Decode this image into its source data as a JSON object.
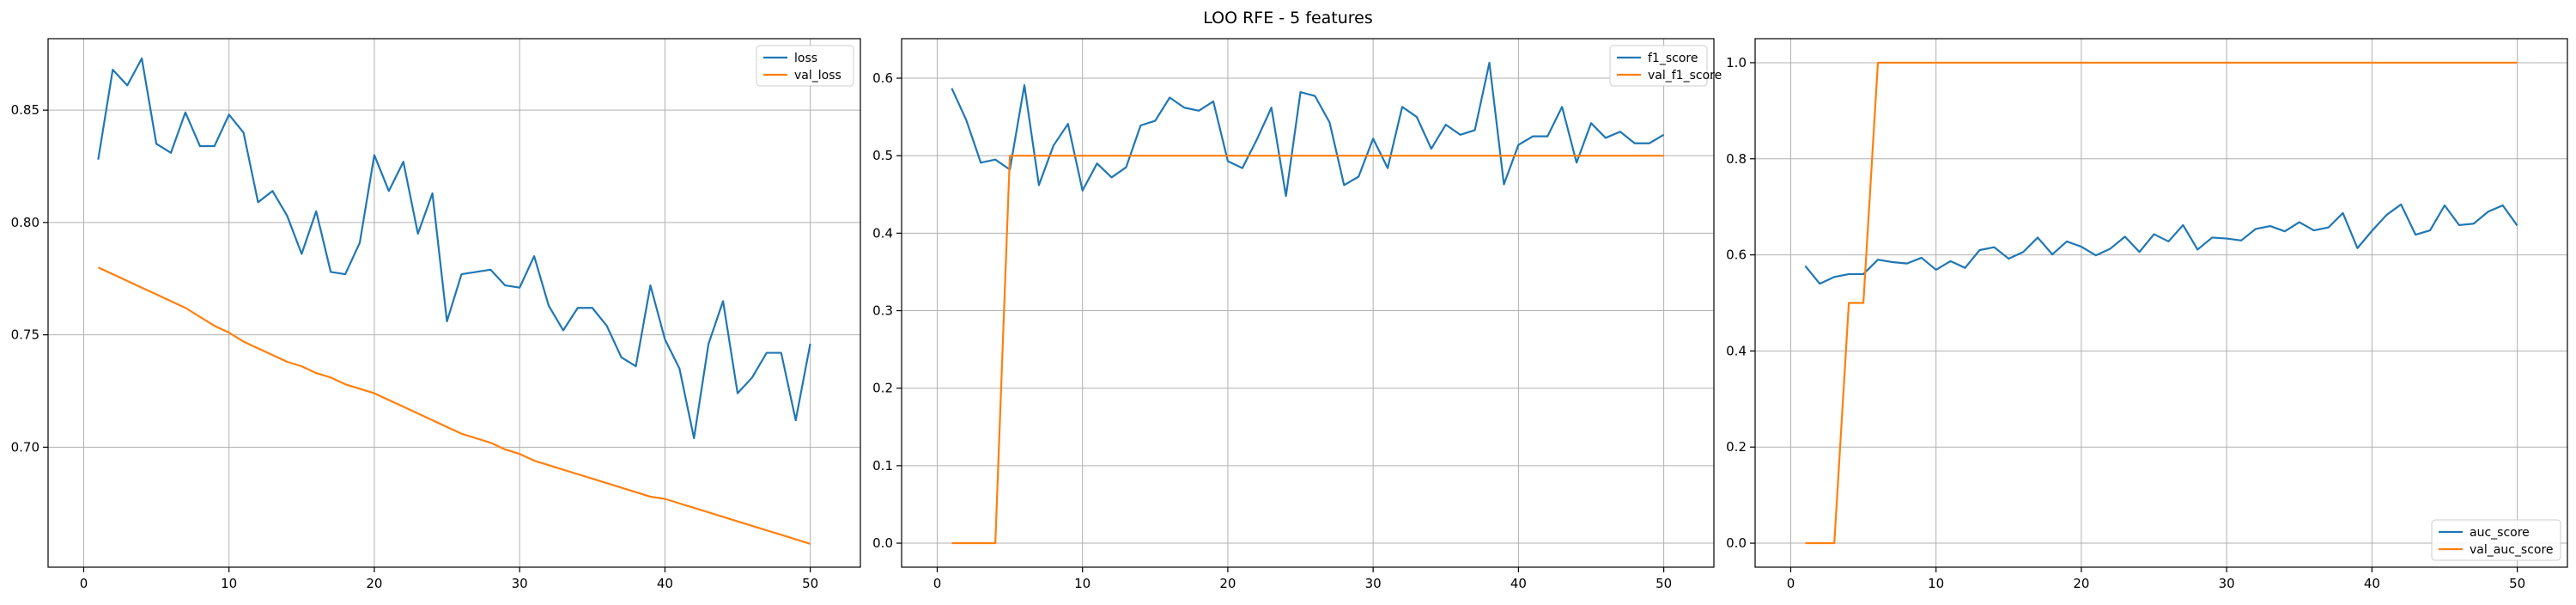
{
  "figure": {
    "suptitle": "LOO RFE - 5 features",
    "colors": {
      "series_1": "#1f77b4",
      "series_2": "#ff7f0e",
      "grid": "#b0b0b0"
    }
  },
  "chart_data": [
    {
      "type": "line",
      "title": "",
      "xlabel": "",
      "ylabel": "",
      "xlim": [
        -2.45,
        53.45
      ],
      "ylim": [
        0.6466,
        0.8818
      ],
      "xticks": [
        0,
        10,
        20,
        30,
        40,
        50
      ],
      "yticks": [
        0.7,
        0.75,
        0.8,
        0.85
      ],
      "ytick_labels": [
        "0.70",
        "0.75",
        "0.80",
        "0.85"
      ],
      "grid": true,
      "legend_position": "upper right",
      "x": [
        1,
        2,
        3,
        4,
        5,
        6,
        7,
        8,
        9,
        10,
        11,
        12,
        13,
        14,
        15,
        16,
        17,
        18,
        19,
        20,
        21,
        22,
        23,
        24,
        25,
        26,
        27,
        28,
        29,
        30,
        31,
        32,
        33,
        34,
        35,
        36,
        37,
        38,
        39,
        40,
        41,
        42,
        43,
        44,
        45,
        46,
        47,
        48,
        49,
        50
      ],
      "series": [
        {
          "name": "loss",
          "values": [
            0.828,
            0.868,
            0.861,
            0.873,
            0.835,
            0.831,
            0.849,
            0.834,
            0.834,
            0.848,
            0.84,
            0.809,
            0.814,
            0.803,
            0.786,
            0.805,
            0.778,
            0.777,
            0.791,
            0.83,
            0.814,
            0.827,
            0.795,
            0.813,
            0.756,
            0.777,
            0.778,
            0.779,
            0.772,
            0.771,
            0.785,
            0.763,
            0.752,
            0.762,
            0.762,
            0.754,
            0.74,
            0.736,
            0.772,
            0.748,
            0.735,
            0.704,
            0.746,
            0.765,
            0.724,
            0.731,
            0.742,
            0.742,
            0.712,
            0.746
          ]
        },
        {
          "name": "val_loss",
          "values": [
            0.78,
            0.777,
            0.774,
            0.771,
            0.768,
            0.765,
            0.762,
            0.758,
            0.754,
            0.751,
            0.747,
            0.744,
            0.741,
            0.738,
            0.736,
            0.733,
            0.731,
            0.728,
            0.726,
            0.724,
            0.721,
            0.718,
            0.715,
            0.712,
            0.709,
            0.706,
            0.704,
            0.702,
            0.699,
            0.697,
            0.694,
            0.692,
            0.69,
            0.688,
            0.686,
            0.684,
            0.682,
            0.68,
            0.678,
            0.677,
            0.675,
            0.673,
            0.671,
            0.669,
            0.667,
            0.665,
            0.663,
            0.661,
            0.659,
            0.657
          ]
        }
      ]
    },
    {
      "type": "line",
      "title": "",
      "xlabel": "",
      "ylabel": "",
      "xlim": [
        -2.45,
        53.45
      ],
      "ylim": [
        -0.031,
        0.651
      ],
      "xticks": [
        0,
        10,
        20,
        30,
        40,
        50
      ],
      "yticks": [
        0.0,
        0.1,
        0.2,
        0.3,
        0.4,
        0.5,
        0.6
      ],
      "ytick_labels": [
        "0.0",
        "0.1",
        "0.2",
        "0.3",
        "0.4",
        "0.5",
        "0.6"
      ],
      "grid": true,
      "legend_position": "upper right",
      "x": [
        1,
        2,
        3,
        4,
        5,
        6,
        7,
        8,
        9,
        10,
        11,
        12,
        13,
        14,
        15,
        16,
        17,
        18,
        19,
        20,
        21,
        22,
        23,
        24,
        25,
        26,
        27,
        28,
        29,
        30,
        31,
        32,
        33,
        34,
        35,
        36,
        37,
        38,
        39,
        40,
        41,
        42,
        43,
        44,
        45,
        46,
        47,
        48,
        49,
        50
      ],
      "series": [
        {
          "name": "f1_score",
          "values": [
            0.587,
            0.546,
            0.491,
            0.495,
            0.482,
            0.591,
            0.462,
            0.513,
            0.541,
            0.455,
            0.49,
            0.472,
            0.485,
            0.539,
            0.545,
            0.575,
            0.562,
            0.558,
            0.57,
            0.493,
            0.484,
            0.521,
            0.562,
            0.448,
            0.582,
            0.577,
            0.543,
            0.462,
            0.473,
            0.522,
            0.484,
            0.563,
            0.55,
            0.509,
            0.54,
            0.527,
            0.533,
            0.62,
            0.463,
            0.514,
            0.525,
            0.525,
            0.563,
            0.491,
            0.542,
            0.523,
            0.531,
            0.516,
            0.516,
            0.527
          ]
        },
        {
          "name": "val_f1_score",
          "values": [
            0.0,
            0.0,
            0.0,
            0.0,
            0.5,
            0.5,
            0.5,
            0.5,
            0.5,
            0.5,
            0.5,
            0.5,
            0.5,
            0.5,
            0.5,
            0.5,
            0.5,
            0.5,
            0.5,
            0.5,
            0.5,
            0.5,
            0.5,
            0.5,
            0.5,
            0.5,
            0.5,
            0.5,
            0.5,
            0.5,
            0.5,
            0.5,
            0.5,
            0.5,
            0.5,
            0.5,
            0.5,
            0.5,
            0.5,
            0.5,
            0.5,
            0.5,
            0.5,
            0.5,
            0.5,
            0.5,
            0.5,
            0.5,
            0.5,
            0.5
          ]
        }
      ]
    },
    {
      "type": "line",
      "title": "",
      "xlabel": "",
      "ylabel": "",
      "xlim": [
        -2.45,
        53.45
      ],
      "ylim": [
        -0.05,
        1.05
      ],
      "xticks": [
        0,
        10,
        20,
        30,
        40,
        50
      ],
      "yticks": [
        0.0,
        0.2,
        0.4,
        0.6,
        0.8,
        1.0
      ],
      "ytick_labels": [
        "0.0",
        "0.2",
        "0.4",
        "0.6",
        "0.8",
        "1.0"
      ],
      "grid": true,
      "legend_position": "lower right",
      "x": [
        1,
        2,
        3,
        4,
        5,
        6,
        7,
        8,
        9,
        10,
        11,
        12,
        13,
        14,
        15,
        16,
        17,
        18,
        19,
        20,
        21,
        22,
        23,
        24,
        25,
        26,
        27,
        28,
        29,
        30,
        31,
        32,
        33,
        34,
        35,
        36,
        37,
        38,
        39,
        40,
        41,
        42,
        43,
        44,
        45,
        46,
        47,
        48,
        49,
        50
      ],
      "series": [
        {
          "name": "auc_score",
          "values": [
            0.577,
            0.54,
            0.554,
            0.56,
            0.56,
            0.59,
            0.585,
            0.582,
            0.594,
            0.569,
            0.587,
            0.573,
            0.61,
            0.616,
            0.592,
            0.606,
            0.636,
            0.601,
            0.628,
            0.617,
            0.599,
            0.613,
            0.638,
            0.606,
            0.643,
            0.628,
            0.662,
            0.611,
            0.636,
            0.634,
            0.63,
            0.654,
            0.66,
            0.649,
            0.668,
            0.651,
            0.657,
            0.687,
            0.614,
            0.65,
            0.683,
            0.705,
            0.642,
            0.651,
            0.703,
            0.662,
            0.665,
            0.69,
            0.703,
            0.661
          ]
        },
        {
          "name": "val_auc_score",
          "values": [
            0.0,
            0.0,
            0.0,
            0.5,
            0.5,
            1.0,
            1.0,
            1.0,
            1.0,
            1.0,
            1.0,
            1.0,
            1.0,
            1.0,
            1.0,
            1.0,
            1.0,
            1.0,
            1.0,
            1.0,
            1.0,
            1.0,
            1.0,
            1.0,
            1.0,
            1.0,
            1.0,
            1.0,
            1.0,
            1.0,
            1.0,
            1.0,
            1.0,
            1.0,
            1.0,
            1.0,
            1.0,
            1.0,
            1.0,
            1.0,
            1.0,
            1.0,
            1.0,
            1.0,
            1.0,
            1.0,
            1.0,
            1.0,
            1.0,
            1.0
          ]
        }
      ]
    }
  ]
}
